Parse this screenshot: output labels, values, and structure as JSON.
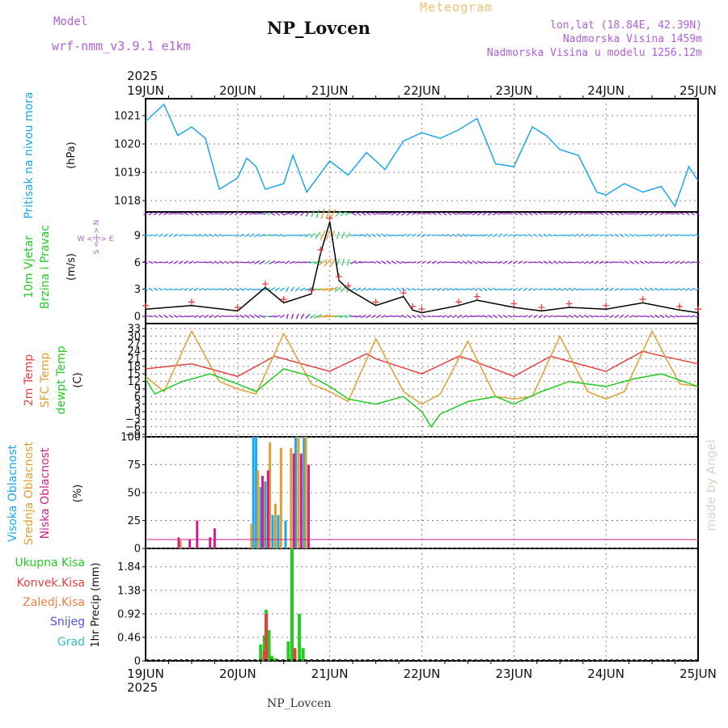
{
  "header": {
    "model_label": "Model",
    "model_name": "wrf-nmm_v3.9.1  e1km",
    "title": "NP_Lovcen",
    "product": "Meteogram",
    "lonlat": "lon,lat (18.84E, 42.39N)",
    "altitude": "Nadmorska Visina 1459m",
    "model_altitude": "Nadmorska Visina u modelu 1256.12m",
    "year_top": "2025",
    "year_bottom": "2025",
    "footer": "NP_Lovcen",
    "watermark": "made by Angel"
  },
  "colors": {
    "pressure": "#1aa7ec",
    "wind_label": "#22cc22",
    "temp2m": "#e84040",
    "sfc_temp": "#e0a030",
    "dewpt": "#22cc22",
    "high_cloud": "#1aa7ec",
    "mid_cloud": "#e0a030",
    "low_cloud": "#d0208a",
    "total_precip": "#22cc22",
    "conv_precip": "#e84040",
    "frozen_precip": "#f08040",
    "snow": "#5050e0",
    "graupel": "#30c0c0",
    "grid": "#888888",
    "axis": "#000000",
    "purple": "#b060d8"
  },
  "chart_data": [
    {
      "type": "line",
      "panel": "pressure",
      "x_ticks": [
        "19JUN",
        "20JUN",
        "21JUN",
        "22JUN",
        "23JUN",
        "24JUN",
        "25JUN"
      ],
      "ylabel": "Pritisak na nivou mora",
      "unit": "(hPa)",
      "yticks": [
        1018,
        1019,
        1020,
        1021
      ],
      "ylim": [
        1017.6,
        1021.6
      ],
      "grid": true,
      "series": [
        {
          "name": "Pritisak na nivou mora",
          "x": [
            0,
            0.2,
            0.35,
            0.5,
            0.65,
            0.8,
            1.0,
            1.1,
            1.2,
            1.3,
            1.5,
            1.6,
            1.75,
            2.0,
            2.2,
            2.4,
            2.6,
            2.8,
            3.0,
            3.2,
            3.4,
            3.6,
            3.8,
            4.0,
            4.2,
            4.35,
            4.5,
            4.7,
            4.9,
            5.0,
            5.2,
            5.4,
            5.6,
            5.75,
            5.9,
            6.0
          ],
          "y": [
            1020.8,
            1021.4,
            1020.3,
            1020.6,
            1020.2,
            1018.4,
            1018.8,
            1019.5,
            1019.2,
            1018.4,
            1018.6,
            1019.6,
            1018.3,
            1019.4,
            1018.9,
            1019.7,
            1019.1,
            1020.1,
            1020.4,
            1020.2,
            1020.5,
            1020.9,
            1019.3,
            1019.2,
            1020.6,
            1020.3,
            1019.8,
            1019.6,
            1018.3,
            1018.2,
            1018.6,
            1018.3,
            1018.5,
            1017.8,
            1019.2,
            1018.7
          ]
        }
      ]
    },
    {
      "type": "line",
      "panel": "wind",
      "ylabel": "10m Vjetar Brzina i Pravac",
      "unit": "(m/s)",
      "yticks": [
        0,
        3,
        6,
        9
      ],
      "ylim": [
        -0.8,
        11.6
      ],
      "direction_key": "W <-|-> E",
      "direction_key_vertical": "S <-|-> N",
      "grid": true,
      "series": [
        {
          "name": "wind speed",
          "x": [
            0,
            0.5,
            1.0,
            1.3,
            1.5,
            1.8,
            1.9,
            2.0,
            2.1,
            2.2,
            2.5,
            2.8,
            2.9,
            3.0,
            3.4,
            3.6,
            4.0,
            4.3,
            4.6,
            5.0,
            5.4,
            5.8,
            6.0
          ],
          "y": [
            0.8,
            1.2,
            0.6,
            3.2,
            1.5,
            2.5,
            7.0,
            10.5,
            4.0,
            3.0,
            1.2,
            2.2,
            0.7,
            0.4,
            1.2,
            1.8,
            1.0,
            0.6,
            1.0,
            0.8,
            1.5,
            0.7,
            0.4
          ]
        }
      ]
    },
    {
      "type": "line",
      "panel": "temperature",
      "unit": "(C)",
      "yticks": [
        -9,
        -6,
        -3,
        0,
        3,
        6,
        9,
        12,
        15,
        18,
        21,
        24,
        27,
        30,
        33
      ],
      "ylim": [
        -10,
        35
      ],
      "grid": true,
      "series": [
        {
          "name": "2m Temp",
          "x": [
            0,
            0.5,
            1.0,
            1.4,
            1.5,
            2.0,
            2.4,
            2.5,
            3.0,
            3.4,
            3.5,
            4.0,
            4.4,
            4.5,
            5.0,
            5.4,
            5.5,
            6.0
          ],
          "y": [
            17,
            19,
            14,
            22,
            21,
            16,
            23,
            21,
            15,
            22,
            21,
            14,
            22,
            21,
            16,
            24,
            23,
            19
          ]
        },
        {
          "name": "SFC Temp",
          "x": [
            0,
            0.2,
            0.5,
            0.8,
            1.0,
            1.2,
            1.5,
            1.8,
            2.0,
            2.2,
            2.5,
            2.8,
            3.0,
            3.2,
            3.5,
            3.8,
            4.0,
            4.2,
            4.5,
            4.8,
            5.0,
            5.2,
            5.5,
            5.8,
            6.0
          ],
          "y": [
            14,
            8,
            32,
            12,
            9,
            7,
            31,
            11,
            8,
            4,
            29,
            8,
            3,
            7,
            28,
            6,
            5,
            6,
            30,
            8,
            5,
            8,
            32,
            11,
            10
          ]
        },
        {
          "name": "dewpt Temp",
          "x": [
            0,
            0.1,
            0.4,
            0.7,
            1.0,
            1.2,
            1.5,
            1.8,
            2.0,
            2.2,
            2.5,
            2.8,
            3.0,
            3.1,
            3.2,
            3.5,
            3.8,
            4.0,
            4.3,
            4.6,
            5.0,
            5.3,
            5.6,
            6.0
          ],
          "y": [
            13,
            7,
            12,
            15,
            11,
            8,
            17,
            14,
            10,
            5,
            3,
            6,
            0,
            -6,
            -1,
            4,
            6,
            3,
            8,
            12,
            10,
            13,
            15,
            10
          ]
        }
      ]
    },
    {
      "type": "bar",
      "panel": "clouds",
      "unit": "(%)",
      "yticks": [
        0,
        25,
        50,
        75,
        100
      ],
      "ylim": [
        0,
        100
      ],
      "grid": true,
      "series": [
        {
          "name": "Visoka Oblacnost",
          "x": [
            0.37,
            1.17,
            1.2,
            1.25,
            1.3,
            1.38,
            1.44,
            1.52,
            1.63,
            1.72
          ],
          "values": [
            5,
            100,
            100,
            55,
            60,
            30,
            30,
            25,
            100,
            100
          ]
        },
        {
          "name": "Srednja Oblacnost",
          "x": [
            0.38,
            1.15,
            1.22,
            1.28,
            1.35,
            1.41,
            1.47,
            1.58,
            1.66,
            1.74
          ],
          "values": [
            7,
            22,
            70,
            58,
            95,
            40,
            90,
            90,
            100,
            100
          ]
        },
        {
          "name": "Niska Oblacnost",
          "x": [
            0.36,
            0.48,
            0.56,
            0.7,
            0.75,
            1.27,
            1.33,
            1.61,
            1.69,
            1.77
          ],
          "values": [
            10,
            8,
            25,
            10,
            18,
            65,
            70,
            85,
            85,
            75
          ]
        }
      ]
    },
    {
      "type": "bar",
      "panel": "precip",
      "unit": "1hr Precip (mm)",
      "yticks": [
        0,
        0.46,
        0.92,
        1.38,
        1.84
      ],
      "ylim": [
        0,
        2.2
      ],
      "grid": true,
      "series": [
        {
          "name": "Ukupna Kisa",
          "x": [
            1.25,
            1.29,
            1.31,
            1.34,
            1.37,
            1.41,
            1.55,
            1.59,
            1.62,
            1.67,
            1.71
          ],
          "values": [
            0.32,
            0.5,
            1.0,
            0.6,
            0.1,
            0.05,
            0.38,
            2.2,
            0.2,
            0.92,
            0.25
          ]
        },
        {
          "name": "Konvek.Kisa",
          "x": [
            1.29,
            1.31,
            1.62
          ],
          "values": [
            0.2,
            0.92,
            0.25
          ]
        },
        {
          "name": "Zaledj.Kisa",
          "x": [],
          "values": []
        },
        {
          "name": "Snijeg",
          "x": [],
          "values": []
        },
        {
          "name": "Grad",
          "x": [],
          "values": []
        }
      ]
    }
  ]
}
